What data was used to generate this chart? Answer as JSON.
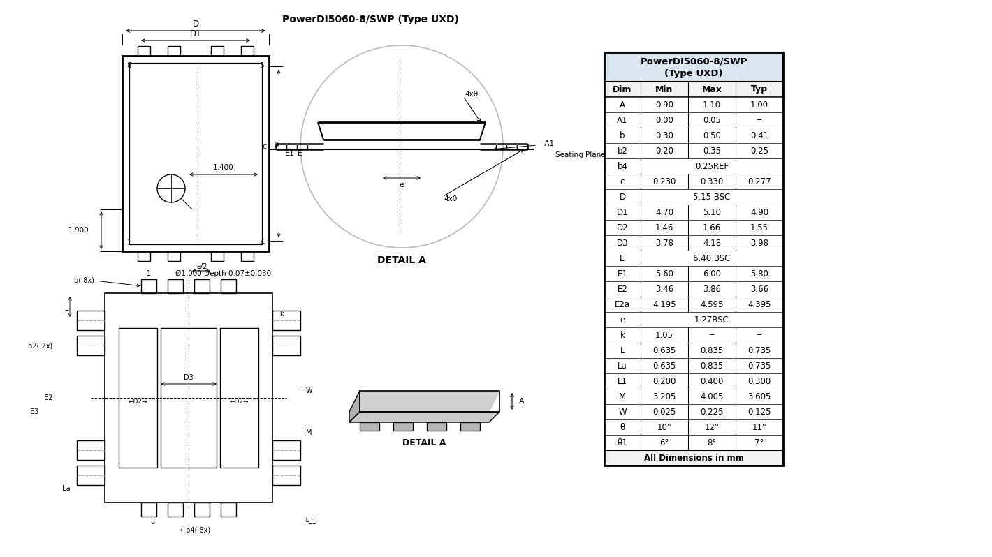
{
  "title": "PowerDI5060-8/SWP (Type UXD)",
  "bg_color": "#ffffff",
  "line_color": "#000000",
  "blue_color": "#2E6DB4",
  "table_header": [
    "Dim",
    "Min",
    "Max",
    "Typ"
  ],
  "table_title1": "PowerDI5060-8/SWP",
  "table_title2": "(Type UXD)",
  "table_rows": [
    [
      "A",
      "0.90",
      "1.10",
      "1.00"
    ],
    [
      "A1",
      "0.00",
      "0.05",
      "--"
    ],
    [
      "b",
      "0.30",
      "0.50",
      "0.41"
    ],
    [
      "b2",
      "0.20",
      "0.35",
      "0.25"
    ],
    [
      "b4",
      "0.25REF",
      "",
      ""
    ],
    [
      "c",
      "0.230",
      "0.330",
      "0.277"
    ],
    [
      "D",
      "5.15 BSC",
      "",
      ""
    ],
    [
      "D1",
      "4.70",
      "5.10",
      "4.90"
    ],
    [
      "D2",
      "1.46",
      "1.66",
      "1.55"
    ],
    [
      "D3",
      "3.78",
      "4.18",
      "3.98"
    ],
    [
      "E",
      "6.40 BSC",
      "",
      ""
    ],
    [
      "E1",
      "5.60",
      "6.00",
      "5.80"
    ],
    [
      "E2",
      "3.46",
      "3.86",
      "3.66"
    ],
    [
      "E2a",
      "4.195",
      "4.595",
      "4.395"
    ],
    [
      "e",
      "1.27BSC",
      "",
      ""
    ],
    [
      "k",
      "1.05",
      "--",
      "--"
    ],
    [
      "L",
      "0.635",
      "0.835",
      "0.735"
    ],
    [
      "La",
      "0.635",
      "0.835",
      "0.735"
    ],
    [
      "L1",
      "0.200",
      "0.400",
      "0.300"
    ],
    [
      "M",
      "3.205",
      "4.005",
      "3.605"
    ],
    [
      "W",
      "0.025",
      "0.225",
      "0.125"
    ],
    [
      "θ",
      "10°",
      "12°",
      "11°"
    ],
    [
      "θ1",
      "6°",
      "8°",
      "7°"
    ]
  ],
  "table_footer": "All Dimensions in mm",
  "merged_rows": [
    "b4",
    "D",
    "E",
    "e"
  ],
  "footnote": "Ø1.000 Depth 0.07±0.030"
}
